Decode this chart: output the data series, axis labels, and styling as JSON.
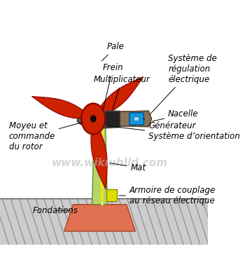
{
  "bg_color": "#ffffff",
  "ground_color": "#cccccc",
  "ground_hatch_color": "#888888",
  "foundation_color": "#e07050",
  "foundation_outline": "#aa4422",
  "mast_color": "#b5d46a",
  "mast_outline": "#6a8a30",
  "mast_highlight": "#e8f0b0",
  "cable_color": "#e8e800",
  "nacelle_color": "#8a7255",
  "nacelle_outline": "#5a4a30",
  "hub_color": "#cc2200",
  "hub_outline": "#880000",
  "blade_color": "#cc2200",
  "blade_outline": "#880000",
  "gearbox_color": "#222222",
  "brake_color": "#33aa44",
  "brake_outline": "#116622",
  "generator_color": "#1199dd",
  "generator_outline": "#005599",
  "electric_box_color": "#dddd00",
  "electric_box_outline": "#888800",
  "watermark_color": "#bbbbbb",
  "watermark_text": "www.wikiuhlld.com",
  "label_fontsize": 8.5,
  "label_style": "italic",
  "labels": {
    "pale": "Pale",
    "frein": "Frein",
    "multiplicateur": "Multiplicateur",
    "systeme_reg": "Système de\nrégulation\nélectrique",
    "nacelle": "Nacelle",
    "generateur": "Générateur",
    "systeme_orient": "Système d’orientation",
    "moyeu": "Moyeu et\ncommande\ndu rotor",
    "mat": "Mat",
    "fondations": "Fondations",
    "armoire": "Armoire de couplage\nau réseau électrique"
  }
}
